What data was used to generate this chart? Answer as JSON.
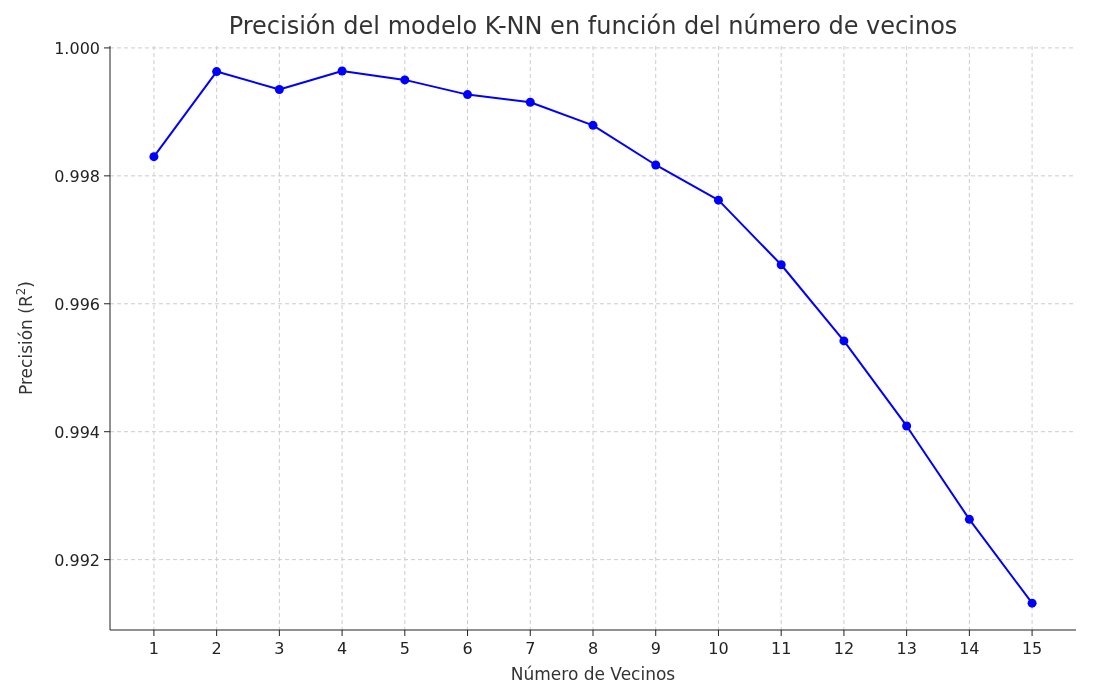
{
  "chart_data": {
    "type": "line",
    "title": "Precisión del modelo K-NN en función del número de vecinos",
    "xlabel": "Número de Vecinos",
    "ylabel": "Precisión (R$^{2}$)",
    "x": [
      1,
      2,
      3,
      4,
      5,
      6,
      7,
      8,
      9,
      10,
      11,
      12,
      13,
      14,
      15
    ],
    "series": [
      {
        "color": "#0000ff",
        "values": [
          0.9983,
          0.99963,
          0.99935,
          0.99964,
          0.9995,
          0.99927,
          0.99915,
          0.99879,
          0.99817,
          0.99762,
          0.99661,
          0.99542,
          0.99409,
          0.99263,
          0.99132
        ]
      }
    ],
    "xlim": [
      0.3,
      15.7
    ],
    "xticks": [
      1,
      2,
      3,
      4,
      5,
      6,
      7,
      8,
      9,
      10,
      11,
      12,
      13,
      14,
      15
    ],
    "ylim": [
      0.9909,
      1.00003
    ],
    "yticks": [
      {
        "value": 0.992,
        "label": "0.992"
      },
      {
        "value": 0.994,
        "label": "0.994"
      },
      {
        "value": 0.996,
        "label": "0.996"
      },
      {
        "value": 0.998,
        "label": "0.998"
      },
      {
        "value": 1.0,
        "label": "1.000"
      }
    ],
    "grid": true,
    "marker": "circle",
    "line_style": "solid"
  }
}
